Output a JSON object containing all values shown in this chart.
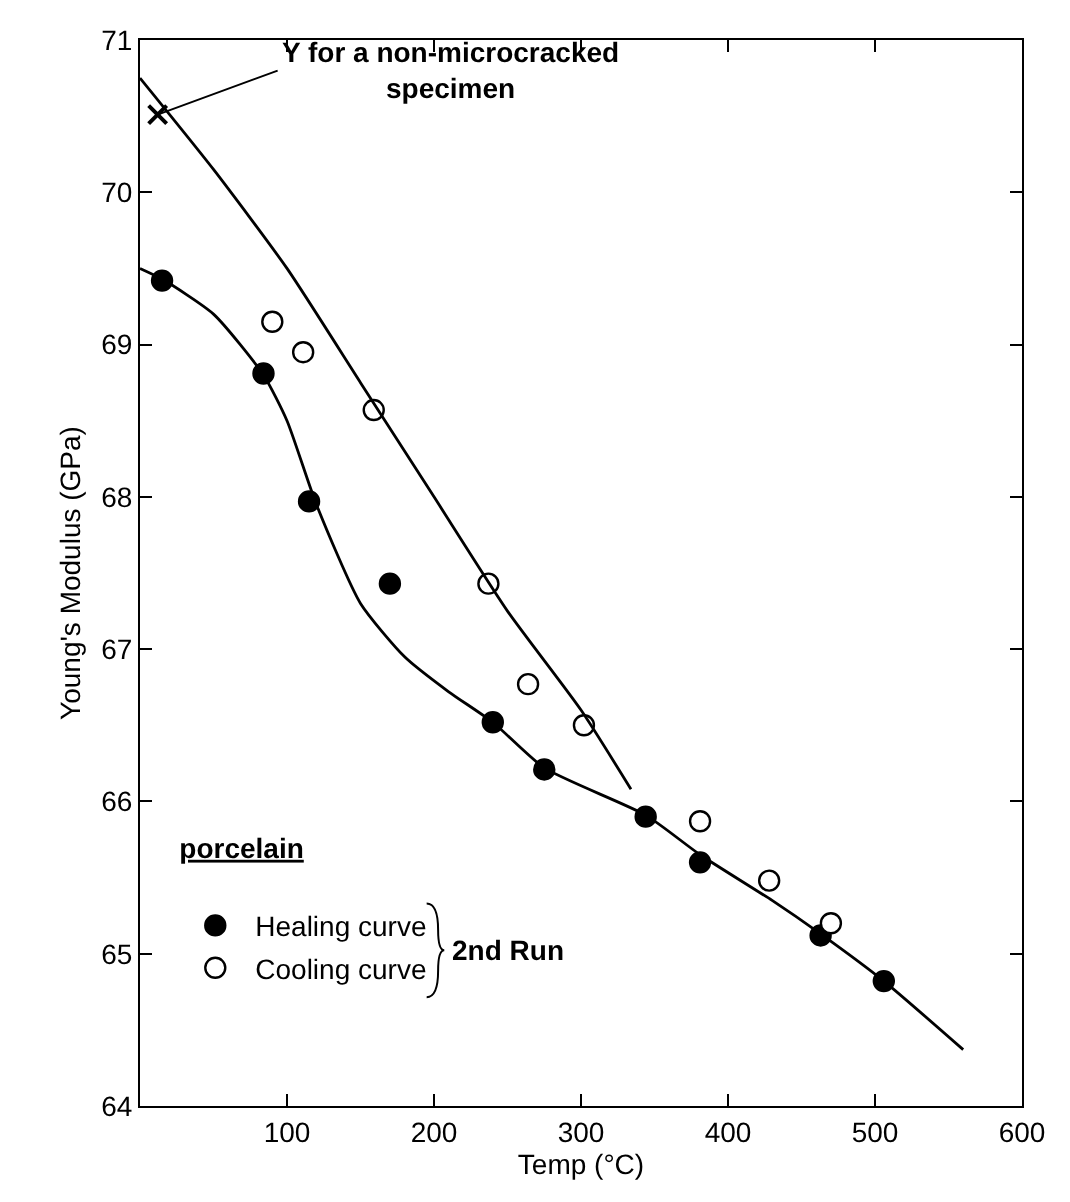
{
  "chart_data": {
    "type": "scatter",
    "xlabel": "Temp (°C)",
    "ylabel": "Young's Modulus (GPa)",
    "legend_title": "porcelain",
    "legend": "bottom left",
    "xlim": [
      0,
      600
    ],
    "xticks": [
      100,
      200,
      300,
      400,
      500,
      600
    ],
    "ylim": [
      64,
      71
    ],
    "yticks": [
      64,
      65,
      66,
      67,
      68,
      69,
      70,
      71
    ],
    "annotations": [
      {
        "text": "Y for a non-microcracked\nspecimen",
        "x": 12,
        "y": 70.51
      },
      "2nd Run"
    ],
    "series": [
      {
        "name": "Healing curve",
        "marker": "circle",
        "color": "#000000",
        "x": [
          15,
          84,
          115,
          170,
          240,
          275,
          344,
          381,
          463,
          506
        ],
        "values": [
          69.42,
          68.81,
          67.97,
          67.43,
          66.52,
          66.21,
          65.9,
          65.6,
          65.12,
          64.82
        ]
      },
      {
        "name": "Cooling curve",
        "marker": "circle",
        "color": "#ffffff",
        "x": [
          90,
          111,
          159,
          237,
          264,
          302,
          381,
          428,
          470
        ],
        "values": [
          69.15,
          68.95,
          68.57,
          67.43,
          66.77,
          66.5,
          65.87,
          65.48,
          65.2
        ]
      },
      {
        "type": "scatter",
        "marker": "cross",
        "color": "#000000",
        "x": [
          12
        ],
        "values": [
          70.51
        ]
      },
      {
        "type": "line",
        "marker": "none",
        "line_style": "solid",
        "color": "#000000",
        "x": [
          0,
          15,
          50,
          84,
          100,
          120,
          150,
          180,
          210,
          240,
          275,
          344,
          381,
          430,
          463,
          506,
          560
        ],
        "values": [
          69.5,
          69.43,
          69.2,
          68.8,
          68.5,
          67.95,
          67.3,
          66.95,
          66.72,
          66.52,
          66.22,
          65.91,
          65.65,
          65.35,
          65.13,
          64.82,
          64.37
        ]
      },
      {
        "type": "line",
        "marker": "none",
        "line_style": "solid",
        "color": "#000000",
        "x": [
          0,
          50,
          100,
          150,
          200,
          250,
          300,
          334
        ],
        "values": [
          70.75,
          70.15,
          69.5,
          68.75,
          68.0,
          67.25,
          66.6,
          66.08
        ]
      }
    ]
  }
}
